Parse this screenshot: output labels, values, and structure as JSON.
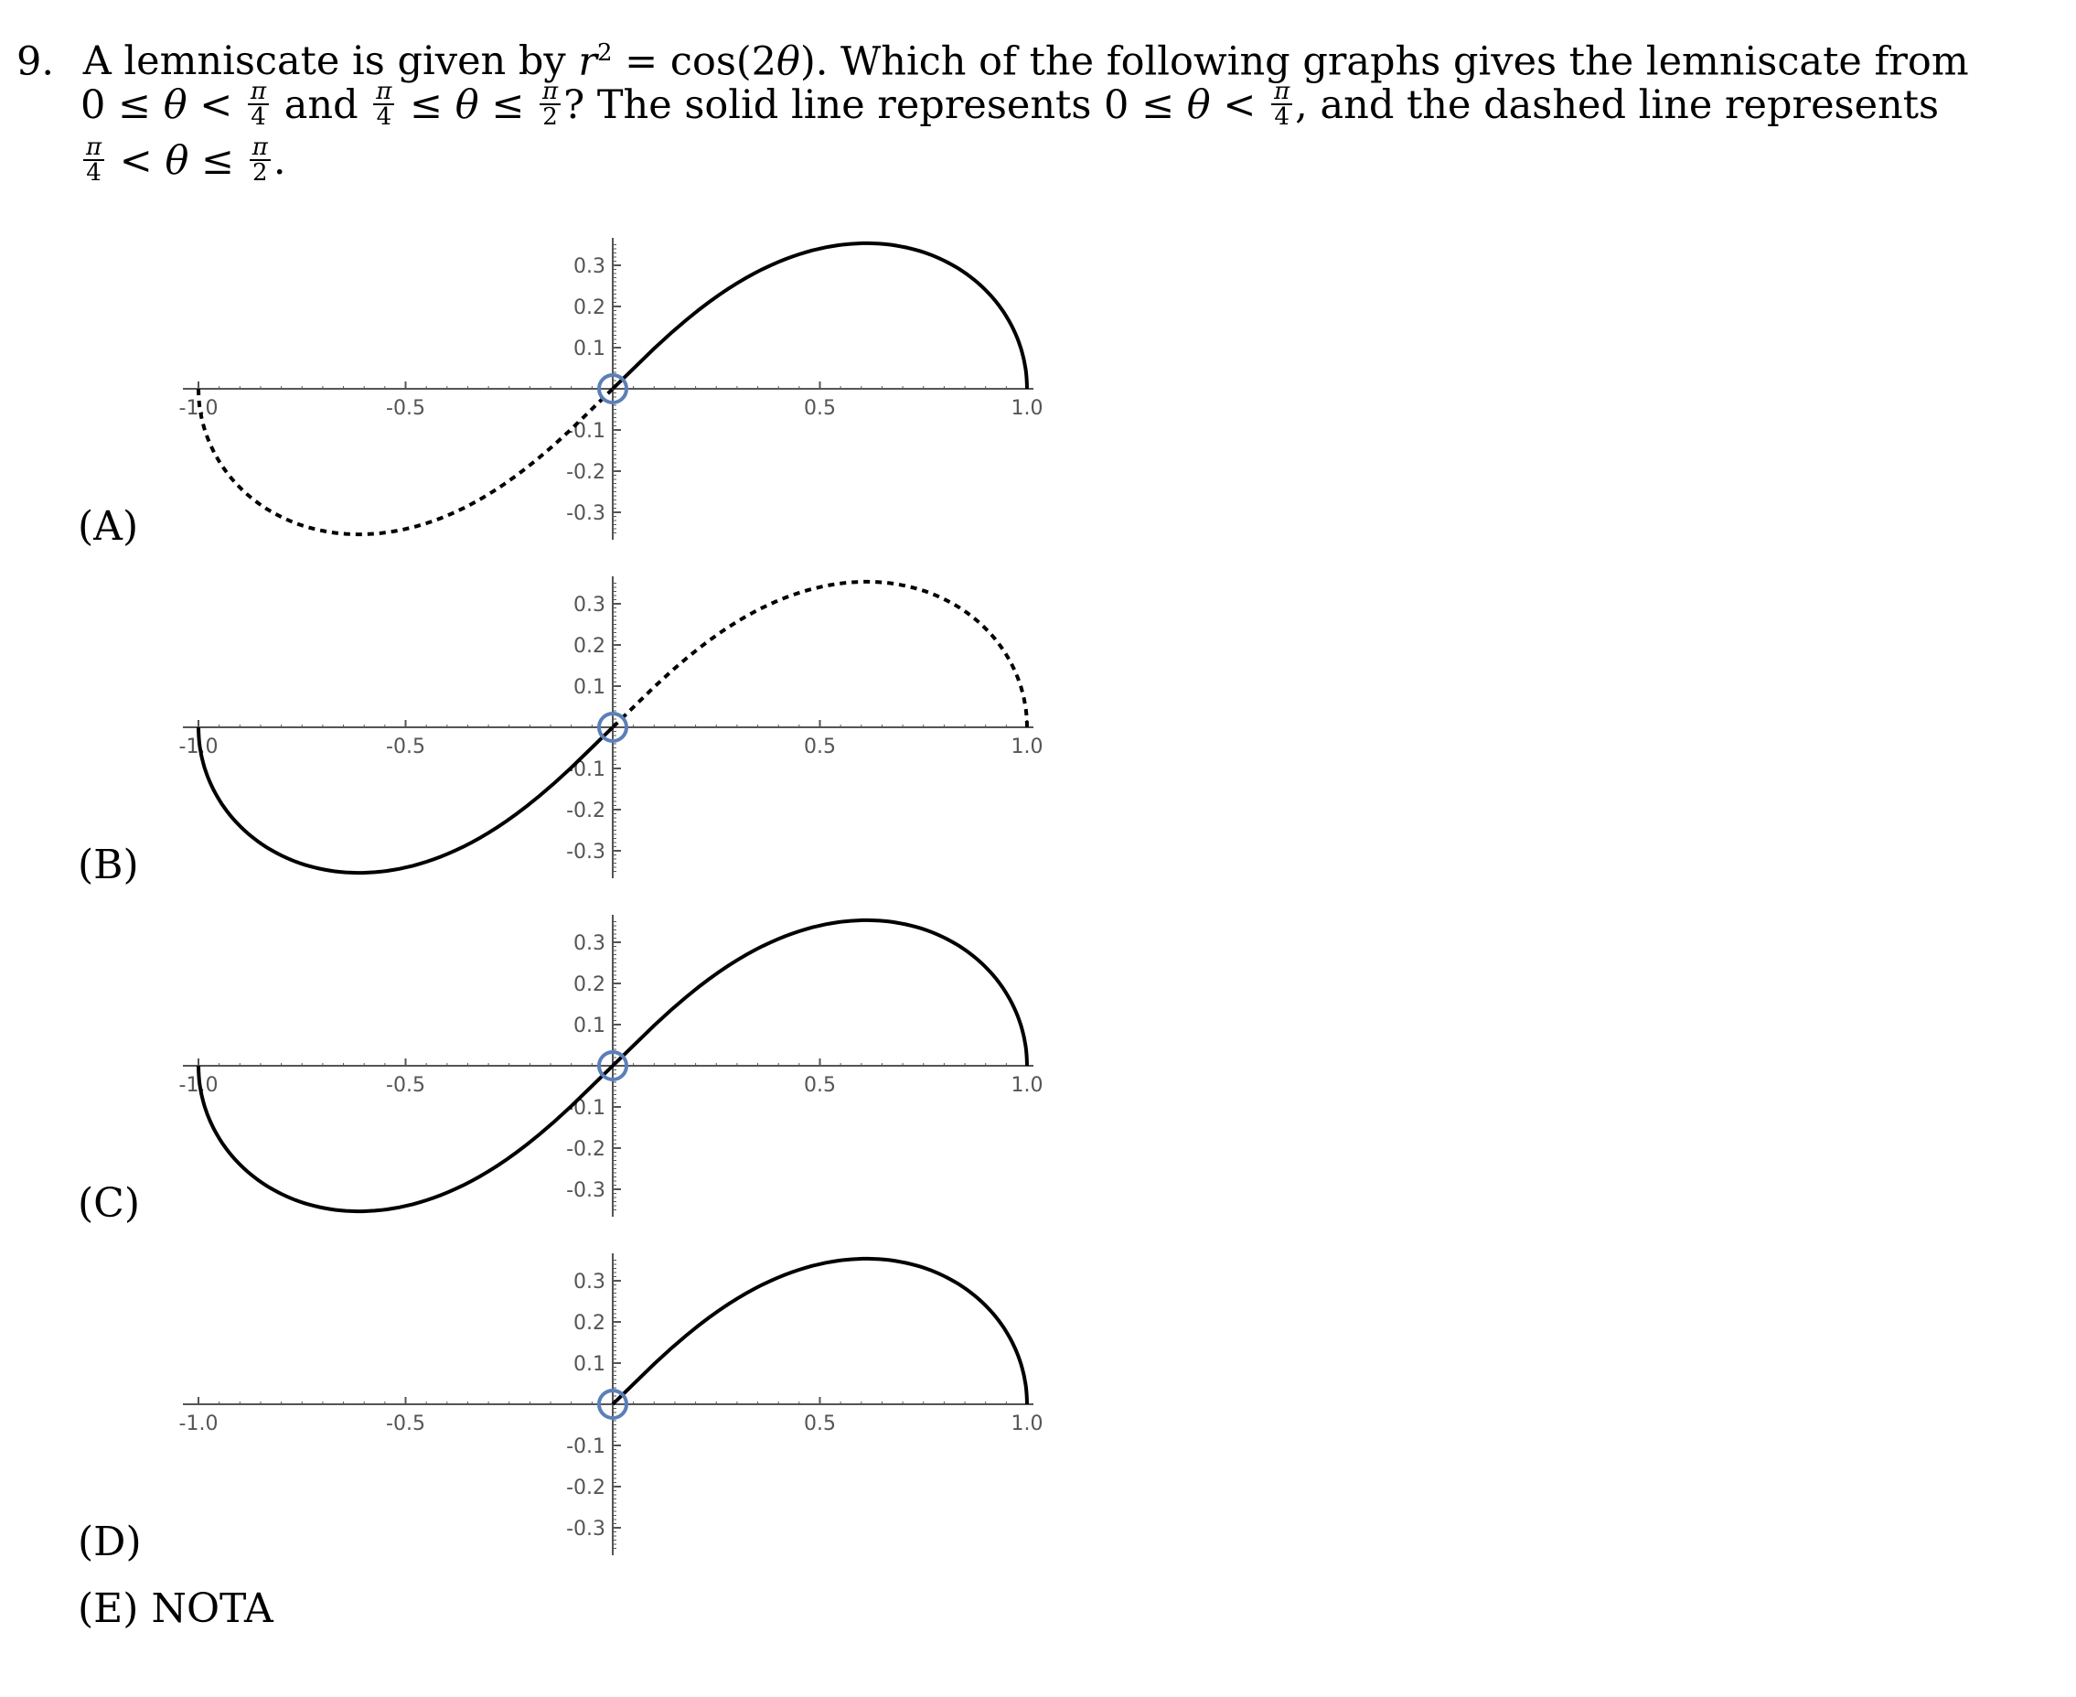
{
  "question": {
    "number": "9.",
    "line1_a": "A lemniscate is given by ",
    "line1_r": "r",
    "line1_exp": "2",
    "line1_b": " = cos(2",
    "theta": "θ",
    "line1_c": "). Which of the following graphs gives the lemniscate from",
    "line2_a": "0 ≤ ",
    "line2_b": " < ",
    "line2_c": " and ",
    "line2_d": " ≤ ",
    "line2_e": " ≤ ",
    "line2_f": "? The solid line represents 0 ≤ ",
    "line2_g": " < ",
    "line2_h": ", and the dashed line represents",
    "line3_a": " < ",
    "line3_b": " ≤ ",
    "line3_c": ".",
    "pi": "π",
    "four": "4",
    "two": "2"
  },
  "options": [
    {
      "label": "(A)"
    },
    {
      "label": "(B)"
    },
    {
      "label": "(C)"
    },
    {
      "label": "(D)"
    },
    {
      "label": "(E)  NOTA"
    }
  ],
  "chart_data": [
    {
      "type": "line",
      "option": "(A)",
      "xlim": [
        -1.0,
        1.0
      ],
      "ylim": [
        -0.35,
        0.35
      ],
      "x_ticks": [
        "-1.0",
        "-0.5",
        "0.5",
        "1.0"
      ],
      "y_ticks": [
        "0.3",
        "0.2",
        "0.1",
        "-0.1",
        "-0.2",
        "-0.3"
      ],
      "series": [
        {
          "style": "solid",
          "theta_range": [
            "0",
            "π/4"
          ],
          "region": "x from 0 to 1, y ≥ 0"
        },
        {
          "style": "dashed",
          "theta_range": [
            "π/4",
            "π/2"
          ],
          "region": "x from -1 to 0, y ≤ 0"
        }
      ],
      "origin_marker": "circle"
    },
    {
      "type": "line",
      "option": "(B)",
      "xlim": [
        -1.0,
        1.0
      ],
      "ylim": [
        -0.35,
        0.35
      ],
      "x_ticks": [
        "-1.0",
        "-0.5",
        "0.5",
        "1.0"
      ],
      "y_ticks": [
        "0.3",
        "0.2",
        "0.1",
        "-0.1",
        "-0.2",
        "-0.3"
      ],
      "series": [
        {
          "style": "dashed",
          "region": "x from 0 to 1, y ≥ 0"
        },
        {
          "style": "solid",
          "region": "x from -1 to 0, y ≤ 0"
        }
      ],
      "origin_marker": "circle"
    },
    {
      "type": "line",
      "option": "(C)",
      "xlim": [
        -1.0,
        1.0
      ],
      "ylim": [
        -0.35,
        0.35
      ],
      "x_ticks": [
        "-1.0",
        "-0.5",
        "0.5",
        "1.0"
      ],
      "y_ticks": [
        "0.3",
        "0.2",
        "0.1",
        "-0.1",
        "-0.2",
        "-0.3"
      ],
      "series": [
        {
          "style": "solid",
          "region": "x from 0 to 1, y ≥ 0"
        },
        {
          "style": "solid",
          "region": "x from -1 to 0, y ≤ 0"
        }
      ],
      "origin_marker": "circle"
    },
    {
      "type": "line",
      "option": "(D)",
      "xlim": [
        -1.0,
        1.0
      ],
      "ylim": [
        -0.35,
        0.35
      ],
      "x_ticks": [
        "-1.0",
        "-0.5",
        "0.5",
        "1.0"
      ],
      "y_ticks": [
        "0.3",
        "0.2",
        "0.1",
        "-0.1",
        "-0.2",
        "-0.3"
      ],
      "series": [
        {
          "style": "solid",
          "region": "x from 0 to 1, y ≥ 0"
        }
      ],
      "origin_marker": "circle"
    }
  ],
  "colors": {
    "curve": "#000000",
    "axis": "#555555",
    "marker": "#5b7fb8"
  }
}
